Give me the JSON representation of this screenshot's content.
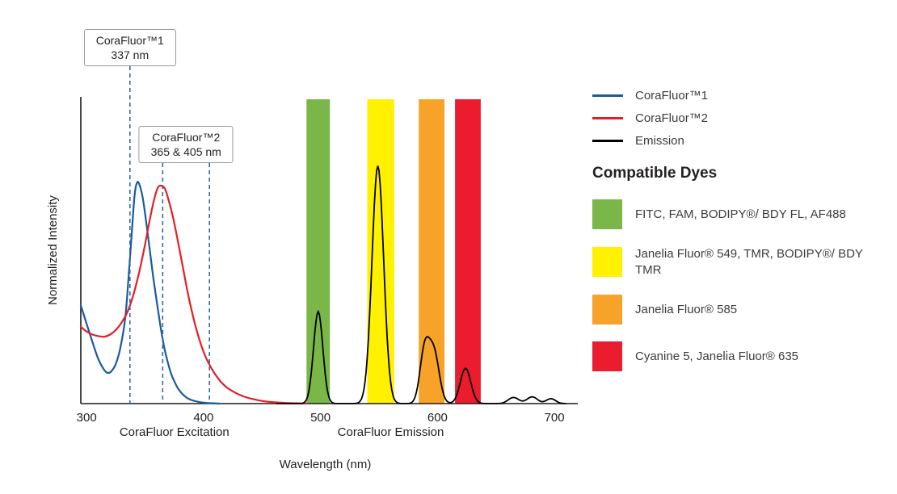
{
  "chart_data": {
    "type": "line",
    "title": "",
    "xlabel": "Wavelength (nm)",
    "ylabel": "Normalized Intensity",
    "x_domain": [
      295,
      720
    ],
    "ylim": [
      0,
      1
    ],
    "x_ticks": [
      300,
      400,
      500,
      600,
      700
    ],
    "grid": false,
    "legend_position": "right",
    "dash_color": "#2e6ca8",
    "region_labels": [
      {
        "text": "CoraFluor Excitation",
        "center_nm": 375
      },
      {
        "text": "CoraFluor Emission",
        "center_nm": 560
      }
    ],
    "bands": [
      {
        "name": "green",
        "from_nm": 488,
        "to_nm": 508,
        "color": "#7ab648"
      },
      {
        "name": "yellow",
        "from_nm": 540,
        "to_nm": 563,
        "color": "#fff100"
      },
      {
        "name": "orange",
        "from_nm": 584,
        "to_nm": 606,
        "color": "#f7a329"
      },
      {
        "name": "red",
        "from_nm": 615,
        "to_nm": 637,
        "color": "#ea1c2d"
      }
    ],
    "series": [
      {
        "name": "CoraFluor™1",
        "color": "#1a5b9c",
        "points": [
          [
            295,
            0.32
          ],
          [
            300,
            0.26
          ],
          [
            305,
            0.2
          ],
          [
            310,
            0.145
          ],
          [
            315,
            0.11
          ],
          [
            318,
            0.1
          ],
          [
            321,
            0.105
          ],
          [
            325,
            0.13
          ],
          [
            329,
            0.185
          ],
          [
            333,
            0.28
          ],
          [
            336,
            0.42
          ],
          [
            339,
            0.58
          ],
          [
            341,
            0.68
          ],
          [
            343,
            0.72
          ],
          [
            345,
            0.715
          ],
          [
            348,
            0.67
          ],
          [
            351,
            0.59
          ],
          [
            354,
            0.5
          ],
          [
            357,
            0.41
          ],
          [
            360,
            0.33
          ],
          [
            363,
            0.255
          ],
          [
            366,
            0.19
          ],
          [
            369,
            0.14
          ],
          [
            372,
            0.1
          ],
          [
            375,
            0.072
          ],
          [
            378,
            0.05
          ],
          [
            381,
            0.035
          ],
          [
            384,
            0.024
          ],
          [
            387,
            0.016
          ],
          [
            390,
            0.011
          ],
          [
            394,
            0.007
          ],
          [
            398,
            0.004
          ],
          [
            403,
            0.002
          ],
          [
            408,
            0.001
          ],
          [
            414,
            0
          ]
        ]
      },
      {
        "name": "CoraFluor™2",
        "color": "#e41e26",
        "points": [
          [
            295,
            0.25
          ],
          [
            300,
            0.235
          ],
          [
            305,
            0.225
          ],
          [
            310,
            0.22
          ],
          [
            315,
            0.218
          ],
          [
            320,
            0.225
          ],
          [
            325,
            0.24
          ],
          [
            330,
            0.265
          ],
          [
            335,
            0.3
          ],
          [
            340,
            0.355
          ],
          [
            345,
            0.43
          ],
          [
            350,
            0.52
          ],
          [
            354,
            0.6
          ],
          [
            358,
            0.67
          ],
          [
            361,
            0.705
          ],
          [
            364,
            0.71
          ],
          [
            367,
            0.7
          ],
          [
            370,
            0.665
          ],
          [
            374,
            0.605
          ],
          [
            378,
            0.53
          ],
          [
            382,
            0.45
          ],
          [
            386,
            0.37
          ],
          [
            390,
            0.3
          ],
          [
            394,
            0.24
          ],
          [
            398,
            0.19
          ],
          [
            402,
            0.15
          ],
          [
            406,
            0.12
          ],
          [
            410,
            0.095
          ],
          [
            415,
            0.07
          ],
          [
            420,
            0.052
          ],
          [
            425,
            0.04
          ],
          [
            430,
            0.03
          ],
          [
            436,
            0.021
          ],
          [
            442,
            0.015
          ],
          [
            448,
            0.01
          ],
          [
            455,
            0.006
          ],
          [
            462,
            0.004
          ],
          [
            470,
            0.002
          ],
          [
            480,
            0.001
          ],
          [
            488,
            0
          ]
        ]
      }
    ],
    "emission": {
      "name": "Emission",
      "color": "#000000",
      "peaks": [
        {
          "center_nm": 498,
          "height": 0.3,
          "sigma_nm": 4
        },
        {
          "center_nm": 549,
          "height": 0.775,
          "sigma_nm": 5
        },
        {
          "center_nm": 589,
          "height": 0.17,
          "sigma_nm": 4
        },
        {
          "center_nm": 597,
          "height": 0.165,
          "sigma_nm": 4.5
        },
        {
          "center_nm": 624,
          "height": 0.115,
          "sigma_nm": 4.5
        },
        {
          "center_nm": 665,
          "height": 0.02,
          "sigma_nm": 4.5
        },
        {
          "center_nm": 681,
          "height": 0.022,
          "sigma_nm": 4.5
        },
        {
          "center_nm": 697,
          "height": 0.016,
          "sigma_nm": 4
        }
      ]
    },
    "callouts": [
      {
        "line1": "CoraFluor™1",
        "line2": "337 nm",
        "anchor_nm": 337,
        "lines_nm": [
          337
        ]
      },
      {
        "line1": "CoraFluor™2",
        "line2": "365 & 405 nm",
        "anchor_nm": 385,
        "lines_nm": [
          365,
          405
        ]
      }
    ]
  },
  "legend": {
    "lines": [
      {
        "label": "CoraFluor™1",
        "color": "#1a5b9c"
      },
      {
        "label": "CoraFluor™2",
        "color": "#e41e26"
      },
      {
        "label": "Emission",
        "color": "#000000"
      }
    ],
    "dyes_heading": "Compatible Dyes",
    "dyes": [
      {
        "name": "green",
        "label": "FITC, FAM, BODIPY®/ BDY FL, AF488",
        "color": "#7ab648"
      },
      {
        "name": "yellow",
        "label": "Janelia Fluor® 549, TMR, BODIPY®/ BDY TMR",
        "color": "#fff100"
      },
      {
        "name": "orange",
        "label": "Janelia Fluor® 585",
        "color": "#f7a329"
      },
      {
        "name": "red",
        "label": "Cyanine 5, Janelia Fluor® 635",
        "color": "#ea1c2d"
      }
    ]
  }
}
